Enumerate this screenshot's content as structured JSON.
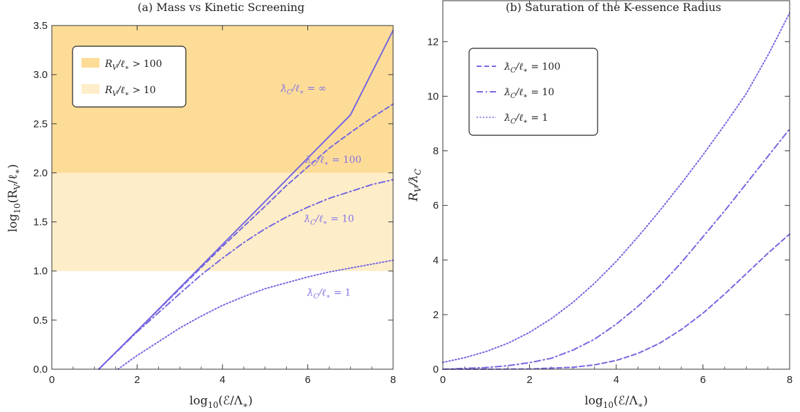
{
  "chart_data": [
    {
      "type": "line",
      "title": "(a)   Mass vs Kinetic Screening",
      "xlabel": "log10(ℰ/Λ*)",
      "ylabel": "log10(RV/ℓ*)",
      "xlim": [
        0,
        8
      ],
      "ylim": [
        0,
        3.5
      ],
      "x_ticks": [
        "0",
        "2",
        "4",
        "6",
        "8"
      ],
      "y_ticks": [
        "0.0",
        "0.5",
        "1.0",
        "1.5",
        "2.0",
        "2.5",
        "3.0",
        "3.5"
      ],
      "shaded_bands": [
        {
          "label": "RV/ℓ* > 100",
          "y_from": 2.0,
          "y_to": 3.5,
          "color": "#fddc98"
        },
        {
          "label": "RV/ℓ* > 10",
          "y_from": 1.0,
          "y_to": 2.0,
          "color": "#feedc9"
        }
      ],
      "series": [
        {
          "name": "ƛ_C/ℓ* = ∞",
          "style": "solid",
          "x": [
            1.1,
            2,
            3,
            4,
            5,
            6,
            7,
            8
          ],
          "y": [
            0.0,
            0.39,
            0.83,
            1.27,
            1.71,
            2.15,
            2.59,
            3.45
          ]
        },
        {
          "name": "ƛ_C/ℓ* = 100",
          "style": "dashed",
          "x": [
            1.1,
            2,
            3,
            4,
            5,
            5.5,
            6,
            6.5,
            7,
            7.5,
            8
          ],
          "y": [
            0.0,
            0.39,
            0.82,
            1.25,
            1.66,
            1.87,
            2.06,
            2.25,
            2.41,
            2.56,
            2.7
          ]
        },
        {
          "name": "ƛ_C/ℓ* = 10",
          "style": "dashdot",
          "x": [
            1.1,
            2,
            3,
            3.5,
            4,
            4.5,
            5,
            5.5,
            6,
            6.5,
            7,
            7.5,
            8
          ],
          "y": [
            0.0,
            0.38,
            0.77,
            0.96,
            1.13,
            1.29,
            1.43,
            1.55,
            1.65,
            1.74,
            1.81,
            1.88,
            1.93
          ]
        },
        {
          "name": "ƛ_C/ℓ* = 1",
          "style": "dotted",
          "x": [
            1.55,
            2,
            2.5,
            3,
            3.5,
            4,
            4.5,
            5,
            5.5,
            6,
            6.5,
            7,
            7.5,
            8
          ],
          "y": [
            0.0,
            0.14,
            0.28,
            0.42,
            0.54,
            0.65,
            0.74,
            0.82,
            0.88,
            0.94,
            0.99,
            1.03,
            1.07,
            1.11
          ]
        }
      ],
      "annotations": [
        {
          "text": "ƛ_C/ℓ* = ∞",
          "x": 5.9,
          "y": 2.83
        },
        {
          "text": "ƛ_C/ℓ* = 100",
          "x": 6.6,
          "y": 2.1
        },
        {
          "text": "ƛ_C/ℓ* = 10",
          "x": 6.5,
          "y": 1.5
        },
        {
          "text": "ƛ_C/ℓ* = 1",
          "x": 6.5,
          "y": 0.75
        }
      ],
      "legend": {
        "position": "top-left",
        "entries": [
          "RV/ℓ* > 100",
          "RV/ℓ* > 10"
        ]
      }
    },
    {
      "type": "line",
      "title": "(b)   Saturation of the K-essence Radius",
      "xlabel": "log10(ℰ/Λ*)",
      "ylabel": "RV/ƛC",
      "xlim": [
        0,
        8
      ],
      "ylim": [
        0,
        13.5
      ],
      "x_ticks": [
        "0",
        "2",
        "4",
        "6",
        "8"
      ],
      "y_ticks": [
        "0",
        "2",
        "4",
        "6",
        "8",
        "10",
        "12"
      ],
      "series": [
        {
          "name": "ƛ_C/ℓ* = 100",
          "style": "dashed",
          "x": [
            0,
            1,
            2,
            3,
            3.5,
            4,
            4.5,
            5,
            5.5,
            6,
            6.5,
            7,
            7.5,
            8
          ],
          "y": [
            0.0,
            0.0,
            0.01,
            0.07,
            0.16,
            0.32,
            0.58,
            0.95,
            1.45,
            2.05,
            2.75,
            3.5,
            4.25,
            4.95
          ]
        },
        {
          "name": "ƛ_C/ℓ* = 10",
          "style": "dashdot",
          "x": [
            0,
            1,
            1.5,
            2,
            2.5,
            3,
            3.5,
            4,
            4.5,
            5,
            5.5,
            6,
            6.5,
            7,
            7.5,
            8
          ],
          "y": [
            0.0,
            0.06,
            0.13,
            0.24,
            0.4,
            0.7,
            1.1,
            1.65,
            2.3,
            3.05,
            3.9,
            4.85,
            5.8,
            6.8,
            7.8,
            8.8
          ]
        },
        {
          "name": "ƛ_C/ℓ* = 1",
          "style": "dotted",
          "x": [
            0,
            0.5,
            1,
            1.5,
            2,
            2.5,
            3,
            3.5,
            4,
            4.5,
            5,
            5.5,
            6,
            6.5,
            7,
            7.5,
            8
          ],
          "y": [
            0.25,
            0.42,
            0.65,
            0.95,
            1.35,
            1.85,
            2.45,
            3.15,
            3.95,
            4.85,
            5.8,
            6.8,
            7.85,
            8.95,
            10.1,
            11.5,
            13.05
          ]
        }
      ],
      "legend": {
        "position": "top-left",
        "entries": [
          "ƛ_C/ℓ* = 100",
          "ƛ_C/ℓ* = 10",
          "ƛ_C/ℓ* = 1"
        ]
      }
    }
  ]
}
